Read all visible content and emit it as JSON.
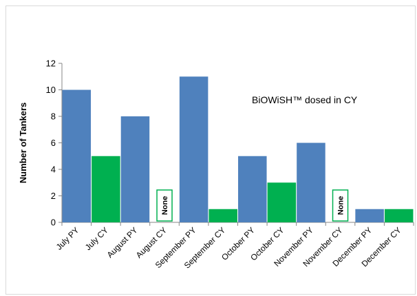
{
  "chart_data": {
    "type": "bar",
    "title": "",
    "xlabel": "",
    "ylabel": "Number of Tankers",
    "ylim": [
      0,
      12
    ],
    "yticks": [
      0,
      2,
      4,
      6,
      8,
      10,
      12
    ],
    "grid": false,
    "legend": "none",
    "annotation": "BiOWiSH™ dosed in CY",
    "none_label": "None",
    "colors": {
      "PY": "#4f81bd",
      "CY": "#00b050"
    },
    "groups": [
      {
        "month": "July",
        "labels": [
          "July PY",
          "July CY"
        ],
        "values": [
          10,
          5
        ]
      },
      {
        "month": "August",
        "labels": [
          "August PY",
          "August CY"
        ],
        "values": [
          8,
          null
        ]
      },
      {
        "month": "September",
        "labels": [
          "September PY",
          "September CY"
        ],
        "values": [
          11,
          1
        ]
      },
      {
        "month": "October",
        "labels": [
          "October PY",
          "October CY"
        ],
        "values": [
          5,
          3
        ]
      },
      {
        "month": "November",
        "labels": [
          "November PY",
          "November CY"
        ],
        "values": [
          6,
          null
        ]
      },
      {
        "month": "December",
        "labels": [
          "December PY",
          "December CY"
        ],
        "values": [
          1,
          1
        ]
      }
    ]
  }
}
